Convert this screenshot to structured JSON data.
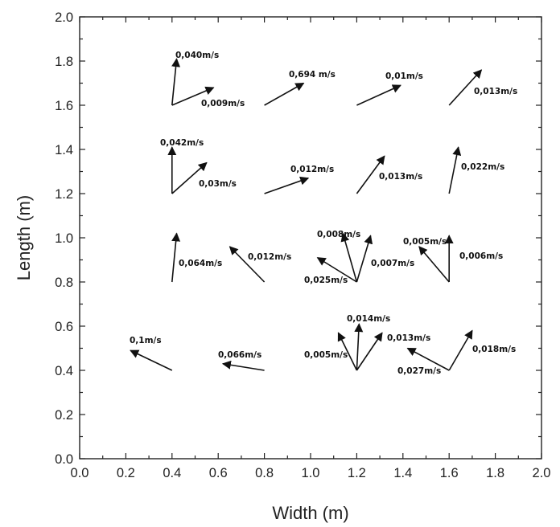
{
  "chart_data": {
    "type": "scatter",
    "subtype": "vector-field",
    "title": "",
    "xlabel": "Width (m)",
    "ylabel": "Length (m)",
    "xlim": [
      0.0,
      2.0
    ],
    "ylim": [
      0.0,
      2.0
    ],
    "grid": false,
    "legend": "none",
    "arrow_color": "#111111",
    "x_ticks": [
      "0.0",
      "0.2",
      "0.4",
      "0.6",
      "0.8",
      "1.0",
      "1.2",
      "1.4",
      "1.6",
      "1.8",
      "2.0"
    ],
    "y_ticks": [
      "0.0",
      "0.2",
      "0.4",
      "0.6",
      "0.8",
      "1.0",
      "1.2",
      "1.4",
      "1.6",
      "1.8",
      "2.0"
    ],
    "arrows": [
      {
        "x0": 0.4,
        "y0": 1.6,
        "x1": 0.42,
        "y1": 1.81,
        "label": "0,040m/s"
      },
      {
        "x0": 0.4,
        "y0": 1.6,
        "x1": 0.58,
        "y1": 1.68,
        "label": "0,009m/s"
      },
      {
        "x0": 0.8,
        "y0": 1.6,
        "x1": 0.97,
        "y1": 1.7,
        "label": "0,694 m/s"
      },
      {
        "x0": 1.2,
        "y0": 1.6,
        "x1": 1.39,
        "y1": 1.69,
        "label": "0,01m/s"
      },
      {
        "x0": 1.6,
        "y0": 1.6,
        "x1": 1.74,
        "y1": 1.76,
        "label": "0,013m/s"
      },
      {
        "x0": 0.4,
        "y0": 1.2,
        "x1": 0.4,
        "y1": 1.41,
        "label": "0,042m/s"
      },
      {
        "x0": 0.4,
        "y0": 1.2,
        "x1": 0.55,
        "y1": 1.34,
        "label": "0,03m/s"
      },
      {
        "x0": 0.8,
        "y0": 1.2,
        "x1": 0.99,
        "y1": 1.27,
        "label": "0,012m/s"
      },
      {
        "x0": 1.2,
        "y0": 1.2,
        "x1": 1.32,
        "y1": 1.37,
        "label": "0,013m/s"
      },
      {
        "x0": 1.6,
        "y0": 1.2,
        "x1": 1.64,
        "y1": 1.41,
        "label": "0,022m/s"
      },
      {
        "x0": 0.4,
        "y0": 0.8,
        "x1": 0.42,
        "y1": 1.02,
        "label": "0,064m/s"
      },
      {
        "x0": 0.8,
        "y0": 0.8,
        "x1": 0.65,
        "y1": 0.96,
        "label": "0,012m/s"
      },
      {
        "x0": 1.2,
        "y0": 0.8,
        "x1": 1.14,
        "y1": 1.02,
        "label": "0,008m/s"
      },
      {
        "x0": 1.2,
        "y0": 0.8,
        "x1": 1.26,
        "y1": 1.01,
        "label": "0,007m/s"
      },
      {
        "x0": 1.2,
        "y0": 0.8,
        "x1": 1.03,
        "y1": 0.91,
        "label": "0,025m/s"
      },
      {
        "x0": 1.6,
        "y0": 0.8,
        "x1": 1.47,
        "y1": 0.96,
        "label": "0,005m/s"
      },
      {
        "x0": 1.6,
        "y0": 0.8,
        "x1": 1.6,
        "y1": 1.01,
        "label": "0,006m/s"
      },
      {
        "x0": 0.4,
        "y0": 0.4,
        "x1": 0.22,
        "y1": 0.49,
        "label": "0,1m/s"
      },
      {
        "x0": 0.8,
        "y0": 0.4,
        "x1": 0.62,
        "y1": 0.43,
        "label": "0,066m/s"
      },
      {
        "x0": 1.2,
        "y0": 0.4,
        "x1": 1.21,
        "y1": 0.61,
        "label": "0,014m/s"
      },
      {
        "x0": 1.2,
        "y0": 0.4,
        "x1": 1.12,
        "y1": 0.57,
        "label": "0,005m/s"
      },
      {
        "x0": 1.2,
        "y0": 0.4,
        "x1": 1.31,
        "y1": 0.57,
        "label": "0,013m/s"
      },
      {
        "x0": 1.6,
        "y0": 0.4,
        "x1": 1.42,
        "y1": 0.5,
        "label": "0,027m/s"
      },
      {
        "x0": 1.6,
        "y0": 0.4,
        "x1": 1.7,
        "y1": 0.58,
        "label": "0,018m/s"
      }
    ]
  }
}
